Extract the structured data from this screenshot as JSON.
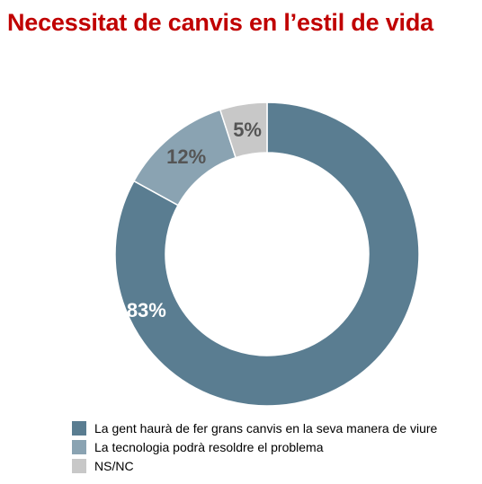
{
  "chart_data": {
    "type": "pie",
    "variant": "donut",
    "title": "Necessitat de canvis en l’estil de vida",
    "slices": [
      {
        "label": "La gent haurà de fer grans canvis en la seva manera de viure",
        "value": 83,
        "display": "83%",
        "color": "#5a7d91",
        "label_color": "#ffffff"
      },
      {
        "label": "La tecnologia podrà resoldre el problema",
        "value": 12,
        "display": "12%",
        "color": "#8aa3b2",
        "label_color": "#555555"
      },
      {
        "label": "NS/NC",
        "value": 5,
        "display": "5%",
        "color": "#c8c8c8",
        "label_color": "#555555"
      }
    ],
    "legend_position": "bottom-left",
    "start": "top",
    "direction": "clockwise"
  }
}
